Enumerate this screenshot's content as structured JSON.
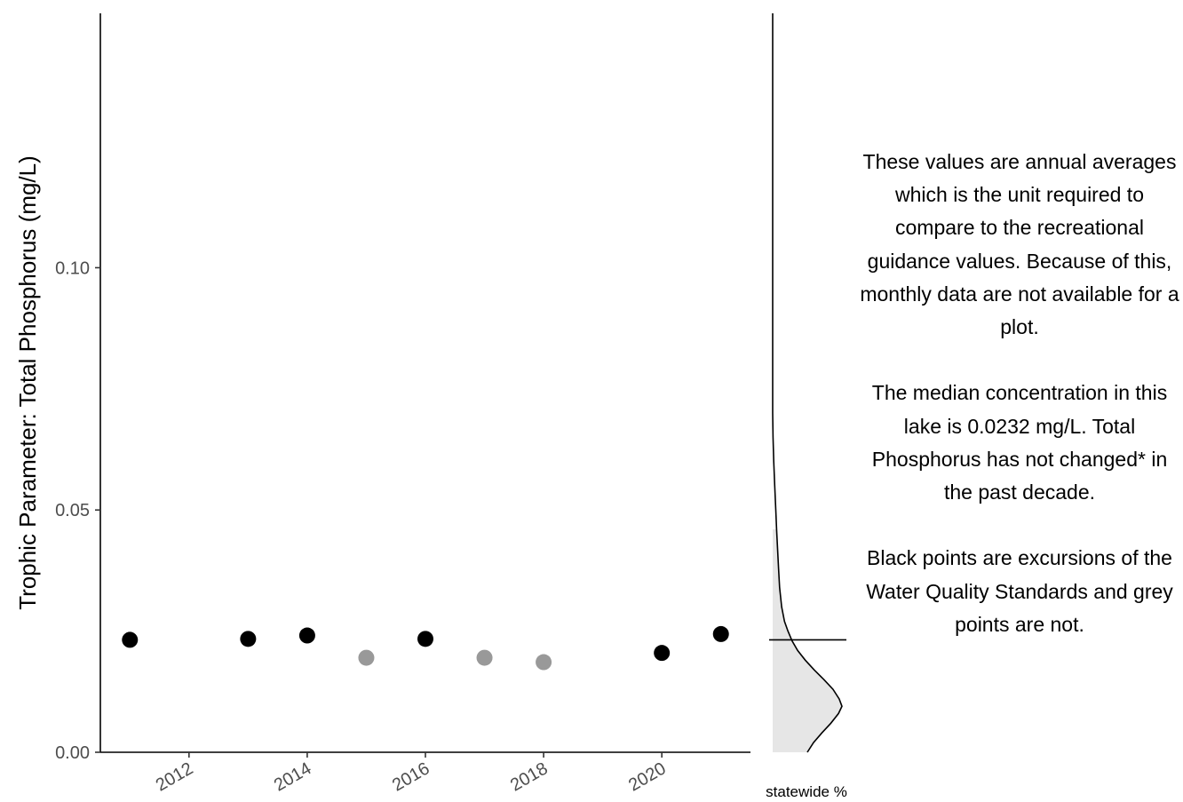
{
  "chart_data": [
    {
      "type": "scatter",
      "ylabel": "Trophic Parameter: Total Phosphorus (mg/L)",
      "xlabel": "",
      "xlim": [
        2010.5,
        2021.5
      ],
      "ylim": [
        0,
        0.1525
      ],
      "x_ticks": [
        2012,
        2014,
        2016,
        2018,
        2020
      ],
      "x_tick_labels": [
        "2012",
        "2014",
        "2016",
        "2018",
        "2020"
      ],
      "y_ticks": [
        0.0,
        0.05,
        0.1
      ],
      "y_tick_labels": [
        "0.00",
        "0.05",
        "0.10"
      ],
      "grid": false,
      "points": [
        {
          "x": 2011,
          "y": 0.0232,
          "color": "#000000"
        },
        {
          "x": 2013,
          "y": 0.0234,
          "color": "#000000"
        },
        {
          "x": 2014,
          "y": 0.0241,
          "color": "#000000"
        },
        {
          "x": 2015,
          "y": 0.0195,
          "color": "#999999"
        },
        {
          "x": 2016,
          "y": 0.0234,
          "color": "#000000"
        },
        {
          "x": 2017,
          "y": 0.0195,
          "color": "#999999"
        },
        {
          "x": 2018,
          "y": 0.0186,
          "color": "#999999"
        },
        {
          "x": 2020,
          "y": 0.0205,
          "color": "#000000"
        },
        {
          "x": 2021,
          "y": 0.0244,
          "color": "#000000"
        }
      ],
      "colors": {
        "excursion": "#000000",
        "non_excursion": "#999999"
      }
    },
    {
      "type": "area",
      "xlabel": "statewide %",
      "shared_y_axis": true,
      "median_line_y": 0.0232,
      "fill_below_y": 0.046,
      "fill_color": "#e6e6e6",
      "density": [
        {
          "y": 0.0,
          "d": 0.5
        },
        {
          "y": 0.002,
          "d": 0.59
        },
        {
          "y": 0.004,
          "d": 0.71
        },
        {
          "y": 0.006,
          "d": 0.84
        },
        {
          "y": 0.008,
          "d": 0.95
        },
        {
          "y": 0.0095,
          "d": 1.0
        },
        {
          "y": 0.011,
          "d": 0.96
        },
        {
          "y": 0.013,
          "d": 0.87
        },
        {
          "y": 0.015,
          "d": 0.74
        },
        {
          "y": 0.017,
          "d": 0.6
        },
        {
          "y": 0.019,
          "d": 0.47
        },
        {
          "y": 0.021,
          "d": 0.36
        },
        {
          "y": 0.023,
          "d": 0.28
        },
        {
          "y": 0.025,
          "d": 0.22
        },
        {
          "y": 0.027,
          "d": 0.17
        },
        {
          "y": 0.03,
          "d": 0.13
        },
        {
          "y": 0.034,
          "d": 0.1
        },
        {
          "y": 0.038,
          "d": 0.085
        },
        {
          "y": 0.042,
          "d": 0.07
        },
        {
          "y": 0.046,
          "d": 0.057
        },
        {
          "y": 0.05,
          "d": 0.045
        },
        {
          "y": 0.055,
          "d": 0.03
        },
        {
          "y": 0.06,
          "d": 0.015
        },
        {
          "y": 0.065,
          "d": 0.005
        },
        {
          "y": 0.07,
          "d": 0.0
        },
        {
          "y": 0.1525,
          "d": 0.0
        }
      ]
    }
  ],
  "annotation": {
    "paragraphs": [
      "These values are annual averages which is the unit required to compare to the recreational guidance values. Because of this, monthly data are not available for a plot.",
      "The median concentration in this lake is 0.0232 mg/L. Total Phosphorus has not changed* in the past decade.",
      "Black points are excursions of the Water Quality Standards and grey points are not."
    ]
  }
}
